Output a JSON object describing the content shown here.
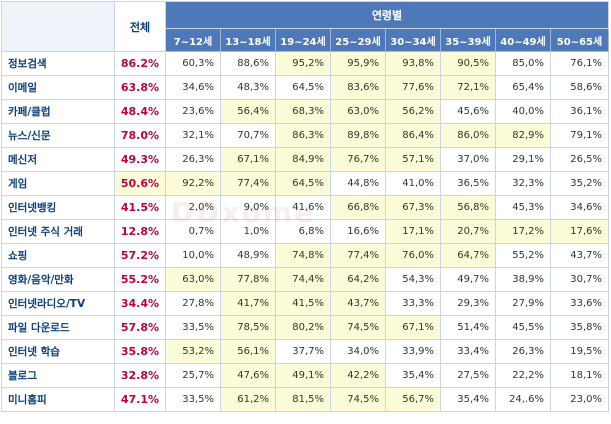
{
  "table": {
    "total_header": "전체",
    "age_group_header": "연령별",
    "age_headers": [
      "7~12세",
      "13~18세",
      "19~24세",
      "25~29세",
      "30~34세",
      "35~39세",
      "40~49세",
      "50~65세"
    ],
    "highlight_color": "#fcfcd8",
    "rows": [
      {
        "category": "정보검색",
        "total": "86.2%",
        "total_hl": false,
        "values": [
          "60,3%",
          "88,6%",
          "95,2%",
          "95,9%",
          "93,8%",
          "90,5%",
          "85,0%",
          "76,1%"
        ],
        "hl": [
          false,
          false,
          true,
          true,
          true,
          true,
          false,
          false
        ]
      },
      {
        "category": "이메일",
        "total": "63.8%",
        "total_hl": false,
        "values": [
          "34,6%",
          "48,3%",
          "64,5%",
          "83,6%",
          "77,6%",
          "72,1%",
          "65,4%",
          "58,6%"
        ],
        "hl": [
          false,
          false,
          false,
          true,
          true,
          true,
          false,
          false
        ]
      },
      {
        "category": "카페/클럽",
        "total": "48.4%",
        "total_hl": false,
        "values": [
          "23,6%",
          "56,4%",
          "68,3%",
          "63,0%",
          "56,2%",
          "45,6%",
          "40,0%",
          "36,1%"
        ],
        "hl": [
          false,
          true,
          true,
          true,
          true,
          false,
          false,
          false
        ]
      },
      {
        "category": "뉴스/신문",
        "total": "78.0%",
        "total_hl": false,
        "values": [
          "32,1%",
          "70,7%",
          "86,3%",
          "89,8%",
          "86,4%",
          "86,0%",
          "82,9%",
          "79,1%"
        ],
        "hl": [
          false,
          false,
          true,
          true,
          true,
          true,
          true,
          false
        ]
      },
      {
        "category": "메신저",
        "total": "49.3%",
        "total_hl": false,
        "values": [
          "26,3%",
          "67,1%",
          "84,9%",
          "76,7%",
          "57,1%",
          "37,0%",
          "29,1%",
          "26,5%"
        ],
        "hl": [
          false,
          true,
          true,
          true,
          true,
          false,
          false,
          false
        ]
      },
      {
        "category": "게임",
        "total": "50.6%",
        "total_hl": true,
        "values": [
          "92,2%",
          "77,4%",
          "64,5%",
          "44,8%",
          "41,0%",
          "36,5%",
          "32,3%",
          "35,2%"
        ],
        "hl": [
          true,
          true,
          true,
          false,
          false,
          false,
          false,
          false
        ]
      },
      {
        "category": "인터넷뱅킹",
        "total": "41.5%",
        "total_hl": false,
        "values": [
          "2,0%",
          "9,0%",
          "41,6%",
          "66,8%",
          "67,3%",
          "56,8%",
          "45,3%",
          "34,6%"
        ],
        "hl": [
          false,
          false,
          false,
          true,
          true,
          true,
          false,
          false
        ]
      },
      {
        "category": "인터넷 주식 거래",
        "total": "12.8%",
        "total_hl": false,
        "values": [
          "0,7%",
          "1,0%",
          "6,8%",
          "16,6%",
          "17,1%",
          "20,7%",
          "17,2%",
          "17,6%"
        ],
        "hl": [
          false,
          false,
          false,
          false,
          true,
          true,
          true,
          true
        ]
      },
      {
        "category": "쇼핑",
        "total": "57.2%",
        "total_hl": false,
        "values": [
          "10,0%",
          "48,9%",
          "74,8%",
          "77,4%",
          "76,0%",
          "64,7%",
          "55,2%",
          "43,7%"
        ],
        "hl": [
          false,
          false,
          true,
          true,
          true,
          true,
          false,
          false
        ]
      },
      {
        "category": "영화/음악/만화",
        "total": "55.2%",
        "total_hl": false,
        "values": [
          "63,0%",
          "77,8%",
          "74,4%",
          "64,2%",
          "54,3%",
          "49,7%",
          "38,9%",
          "30,7%"
        ],
        "hl": [
          true,
          true,
          true,
          true,
          false,
          false,
          false,
          false
        ]
      },
      {
        "category": "인터넷라디오/TV",
        "total": "34.4%",
        "total_hl": false,
        "values": [
          "27,8%",
          "41,7%",
          "41,5%",
          "43,7%",
          "33,3%",
          "29,3%",
          "27,9%",
          "33,6%"
        ],
        "hl": [
          false,
          true,
          true,
          true,
          false,
          false,
          false,
          false
        ]
      },
      {
        "category": "파일 다운로드",
        "total": "57.8%",
        "total_hl": false,
        "values": [
          "33,5%",
          "78,5%",
          "80,2%",
          "74,5%",
          "67,1%",
          "51,4%",
          "45,5%",
          "35,8%"
        ],
        "hl": [
          false,
          true,
          true,
          true,
          true,
          false,
          false,
          false
        ]
      },
      {
        "category": "인터넷 학습",
        "total": "35.8%",
        "total_hl": false,
        "values": [
          "53,2%",
          "56,1%",
          "37,7%",
          "34,0%",
          "33,9%",
          "33,4%",
          "26,3%",
          "19,5%"
        ],
        "hl": [
          true,
          true,
          false,
          false,
          false,
          false,
          false,
          false
        ]
      },
      {
        "category": "블로그",
        "total": "32.8%",
        "total_hl": false,
        "values": [
          "25,7%",
          "47,6%",
          "49,1%",
          "42,2%",
          "35,4%",
          "27,5%",
          "22,2%",
          "18,1%"
        ],
        "hl": [
          false,
          true,
          true,
          true,
          false,
          false,
          false,
          false
        ]
      },
      {
        "category": "미니홈피",
        "total": "47.1%",
        "total_hl": false,
        "values": [
          "33,5%",
          "61,2%",
          "81,5%",
          "74,5%",
          "56,7%",
          "35,4%",
          "24,.6%",
          "23,0%"
        ],
        "hl": [
          false,
          true,
          true,
          true,
          true,
          false,
          false,
          false
        ]
      }
    ]
  }
}
